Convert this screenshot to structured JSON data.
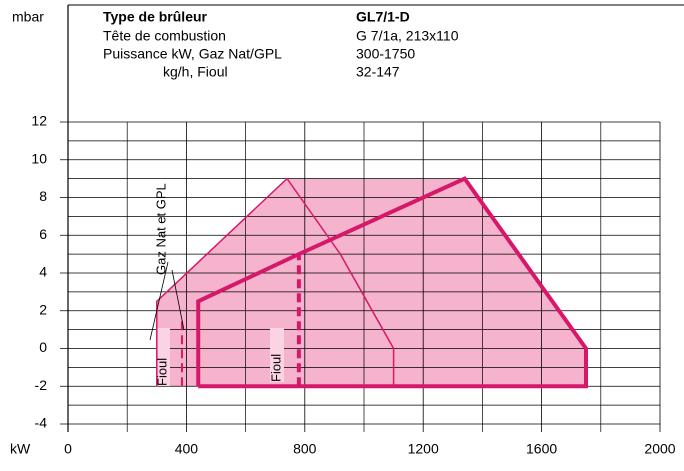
{
  "chart_data": {
    "type": "line",
    "y_label": "mbar",
    "x_label": "kW",
    "header": [
      [
        "Type de brûleur",
        "GL7/1-D"
      ],
      [
        "Tête de combustion",
        "G 7/1a, 213x110"
      ],
      [
        "Puissance kW, Gaz Nat/GPL",
        "300-1750"
      ],
      [
        "kg/h, Fioul",
        "32-147"
      ]
    ],
    "xlim": [
      0,
      2000
    ],
    "xticks": [
      0,
      400,
      800,
      1200,
      1600,
      2000
    ],
    "minor_xticks": [
      200,
      600,
      1000,
      1400,
      1800
    ],
    "ylim": [
      -4,
      12
    ],
    "yticks": [
      -4,
      -2,
      0,
      2,
      4,
      6,
      8,
      10,
      12
    ],
    "minor_yticks": [
      -3,
      -1,
      1,
      3,
      5,
      7,
      9,
      11
    ],
    "grid": true,
    "area": {
      "color": "#f5b3cd",
      "x": [
        300,
        300,
        740,
        1340,
        1750,
        1750
      ],
      "values": [
        -2,
        2.5,
        9,
        9,
        0,
        -2
      ]
    },
    "series": [
      {
        "color": "#d6186a",
        "line_width": 4,
        "x": [
          440,
          440,
          780,
          1340,
          1750,
          1750,
          440
        ],
        "values": [
          -2,
          2.5,
          5,
          9,
          0,
          -2,
          -2
        ]
      },
      {
        "color": "#d6186a",
        "line_width": 1.5,
        "x": [
          300,
          300,
          740,
          920,
          1100,
          1100
        ],
        "values": [
          -2,
          2.5,
          9,
          5,
          0,
          -2
        ]
      },
      {
        "color": "#d6186a",
        "line_width": 4,
        "dash": true,
        "x": [
          780,
          780
        ],
        "values": [
          -2,
          5
        ]
      },
      {
        "color": "#d6186a",
        "line_width": 2,
        "dash": true,
        "x": [
          385,
          385
        ],
        "values": [
          -2,
          1.5
        ]
      }
    ],
    "annotations": [
      "Gaz Nat et GPL",
      "Fioul",
      "Fioul"
    ]
  }
}
